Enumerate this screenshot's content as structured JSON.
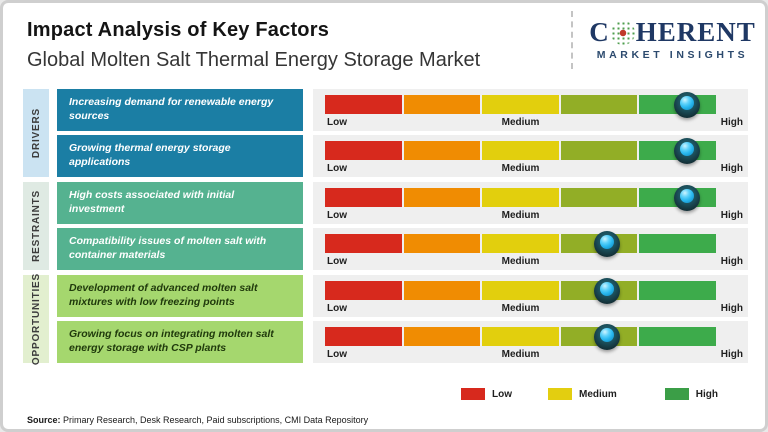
{
  "header": {
    "title": "Impact Analysis of Key Factors",
    "subtitle": "Global Molten Salt Thermal Energy Storage Market",
    "logo": {
      "word_start": "C",
      "word_end": "HERENT",
      "tagline": "MARKET INSIGHTS",
      "brand_color": "#1f3864"
    }
  },
  "groups": [
    {
      "label": "DRIVERS",
      "strip_color": "#cbe3f2",
      "box_color": "#1b7ea4",
      "box_text_color": "#ffffff"
    },
    {
      "label": "RESTRAINTS",
      "strip_color": "#dfeae3",
      "box_color": "#55b290",
      "box_text_color": "#ffffff"
    },
    {
      "label": "OPPORTUNITIES",
      "strip_color": "#e2efcf",
      "box_color": "#a5d76e",
      "box_text_color": "#203a0c"
    }
  ],
  "factors": [
    {
      "category": "Drivers",
      "text": "Increasing demand for renewable energy sources",
      "impact": "High",
      "marker_pct": 92.5
    },
    {
      "category": "Drivers",
      "text": "Growing thermal energy storage applications",
      "impact": "High",
      "marker_pct": 92.5
    },
    {
      "category": "Restraints",
      "text": "High costs associated with initial investment",
      "impact": "High",
      "marker_pct": 92.5
    },
    {
      "category": "Restraints",
      "text": "Compatibility issues of molten salt with container materials",
      "impact": "Medium-High",
      "marker_pct": 72
    },
    {
      "category": "Opportunities",
      "text": "Development of advanced molten salt mixtures with low freezing points",
      "impact": "Medium-High",
      "marker_pct": 72
    },
    {
      "category": "Opportunities",
      "text": "Growing focus on integrating molten salt energy storage with CSP plants",
      "impact": "Medium-High",
      "marker_pct": 72
    }
  ],
  "scale": {
    "low": "Low",
    "medium": "Medium",
    "high": "High",
    "segment_colors": [
      "#d7291d",
      "#f08c02",
      "#e2cf0d",
      "#92ae26",
      "#3dab4b"
    ],
    "marker_colors": {
      "ring": "#132f36",
      "core": "#29b8ef"
    }
  },
  "legend": {
    "items": [
      {
        "label": "Low",
        "color": "#d7291d"
      },
      {
        "label": "Medium",
        "color": "#e3ce10"
      },
      {
        "label": "High",
        "color": "#3b9e47"
      }
    ]
  },
  "source": {
    "prefix": "Source:",
    "text": " Primary Research, Desk Research, Paid subscriptions, CMI Data Repository"
  },
  "chart_data": {
    "type": "table",
    "title": "Impact Analysis of Key Factors",
    "subtitle": "Global Molten Salt Thermal Energy Storage Market",
    "scale": [
      "Low",
      "Medium",
      "High"
    ],
    "categories": [
      "Drivers",
      "Drivers",
      "Restraints",
      "Restraints",
      "Opportunities",
      "Opportunities"
    ],
    "factors": [
      "Increasing demand for renewable energy sources",
      "Growing thermal energy storage applications",
      "High costs associated with initial investment",
      "Compatibility issues of molten salt with container materials",
      "Development of advanced molten salt mixtures with low freezing points",
      "Growing focus on integrating molten salt energy storage with CSP plants"
    ],
    "impact_position_pct": [
      92.5,
      92.5,
      92.5,
      72,
      72,
      72
    ],
    "legend_position": "bottom"
  }
}
